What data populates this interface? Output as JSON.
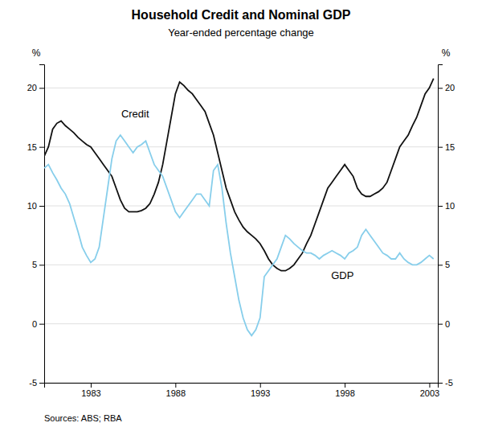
{
  "chart_data": {
    "type": "line",
    "title": "Household Credit and Nominal GDP",
    "subtitle": "Year-ended percentage change",
    "ylabel": "%",
    "y2label": "%",
    "source": "Sources: ABS; RBA",
    "xlim": [
      1980.25,
      2003.5
    ],
    "xticks": [
      1983,
      1988,
      1993,
      1998,
      2003
    ],
    "ylim": [
      -5,
      22
    ],
    "yticks": [
      -5,
      0,
      5,
      10,
      15,
      20
    ],
    "y2lim": [
      -5,
      22
    ],
    "y2ticks": [
      -5,
      0,
      5,
      10,
      15,
      20
    ],
    "grid": true,
    "x": [
      1980.25,
      1980.5,
      1980.75,
      1981.0,
      1981.25,
      1981.5,
      1981.75,
      1982.0,
      1982.25,
      1982.5,
      1982.75,
      1983.0,
      1983.25,
      1983.5,
      1983.75,
      1984.0,
      1984.25,
      1984.5,
      1984.75,
      1985.0,
      1985.25,
      1985.5,
      1985.75,
      1986.0,
      1986.25,
      1986.5,
      1986.75,
      1987.0,
      1987.25,
      1987.5,
      1987.75,
      1988.0,
      1988.25,
      1988.5,
      1988.75,
      1989.0,
      1989.25,
      1989.5,
      1989.75,
      1990.0,
      1990.25,
      1990.5,
      1990.75,
      1991.0,
      1991.25,
      1991.5,
      1991.75,
      1992.0,
      1992.25,
      1992.5,
      1992.75,
      1993.0,
      1993.25,
      1993.5,
      1993.75,
      1994.0,
      1994.25,
      1994.5,
      1994.75,
      1995.0,
      1995.25,
      1995.5,
      1995.75,
      1996.0,
      1996.25,
      1996.5,
      1996.75,
      1997.0,
      1997.25,
      1997.5,
      1997.75,
      1998.0,
      1998.25,
      1998.5,
      1998.75,
      1999.0,
      1999.25,
      1999.5,
      1999.75,
      2000.0,
      2000.25,
      2000.5,
      2000.75,
      2001.0,
      2001.25,
      2001.5,
      2001.75,
      2002.0,
      2002.25,
      2002.5,
      2002.75,
      2003.0,
      2003.25
    ],
    "series": [
      {
        "color": "#111111",
        "values": [
          14.2,
          15.0,
          16.5,
          17.0,
          17.2,
          16.8,
          16.5,
          16.2,
          15.8,
          15.5,
          15.2,
          15.0,
          14.5,
          14.0,
          13.5,
          13.0,
          12.5,
          11.5,
          10.5,
          9.8,
          9.5,
          9.5,
          9.5,
          9.6,
          9.8,
          10.2,
          11.0,
          12.0,
          13.5,
          15.5,
          17.5,
          19.5,
          20.5,
          20.2,
          19.8,
          19.5,
          19.0,
          18.5,
          18.0,
          17.0,
          16.0,
          14.5,
          13.0,
          11.5,
          10.5,
          9.5,
          8.8,
          8.2,
          7.8,
          7.5,
          7.2,
          6.8,
          6.2,
          5.5,
          5.0,
          4.7,
          4.5,
          4.5,
          4.7,
          5.0,
          5.5,
          6.0,
          6.8,
          7.5,
          8.5,
          9.5,
          10.5,
          11.5,
          12.0,
          12.5,
          13.0,
          13.5,
          13.0,
          12.5,
          11.5,
          11.0,
          10.8,
          10.8,
          11.0,
          11.2,
          11.5,
          12.0,
          13.0,
          14.0,
          15.0,
          15.5,
          16.0,
          16.8,
          17.5,
          18.5,
          19.5,
          20.0,
          20.8
        ]
      },
      {
        "color": "#87ceeb",
        "values": [
          13.2,
          13.5,
          12.8,
          12.2,
          11.5,
          11.0,
          10.2,
          9.0,
          7.8,
          6.5,
          5.8,
          5.2,
          5.5,
          6.5,
          9.0,
          11.5,
          14.0,
          15.5,
          16.0,
          15.5,
          15.0,
          14.5,
          15.0,
          15.2,
          15.5,
          14.5,
          13.5,
          13.0,
          12.5,
          11.5,
          10.5,
          9.5,
          9.0,
          9.5,
          10.0,
          10.5,
          11.0,
          11.0,
          10.5,
          10.0,
          13.0,
          13.5,
          11.5,
          8.5,
          6.0,
          4.0,
          2.0,
          0.5,
          -0.5,
          -1.0,
          -0.5,
          0.5,
          4.0,
          4.5,
          5.0,
          5.5,
          6.5,
          7.5,
          7.2,
          6.8,
          6.5,
          6.2,
          6.0,
          6.0,
          5.8,
          5.5,
          5.8,
          6.0,
          6.2,
          6.0,
          5.8,
          5.5,
          6.0,
          6.2,
          6.5,
          7.5,
          8.0,
          7.5,
          7.0,
          6.5,
          6.0,
          5.8,
          5.5,
          5.5,
          6.0,
          5.5,
          5.2,
          5.0,
          5.0,
          5.2,
          5.5,
          5.8,
          5.5
        ]
      }
    ],
    "annotations": [
      {
        "text": "Credit",
        "x": 1984.8,
        "y": 17.5
      },
      {
        "text": "GDP",
        "x": 1997.2,
        "y": 3.8
      }
    ]
  }
}
